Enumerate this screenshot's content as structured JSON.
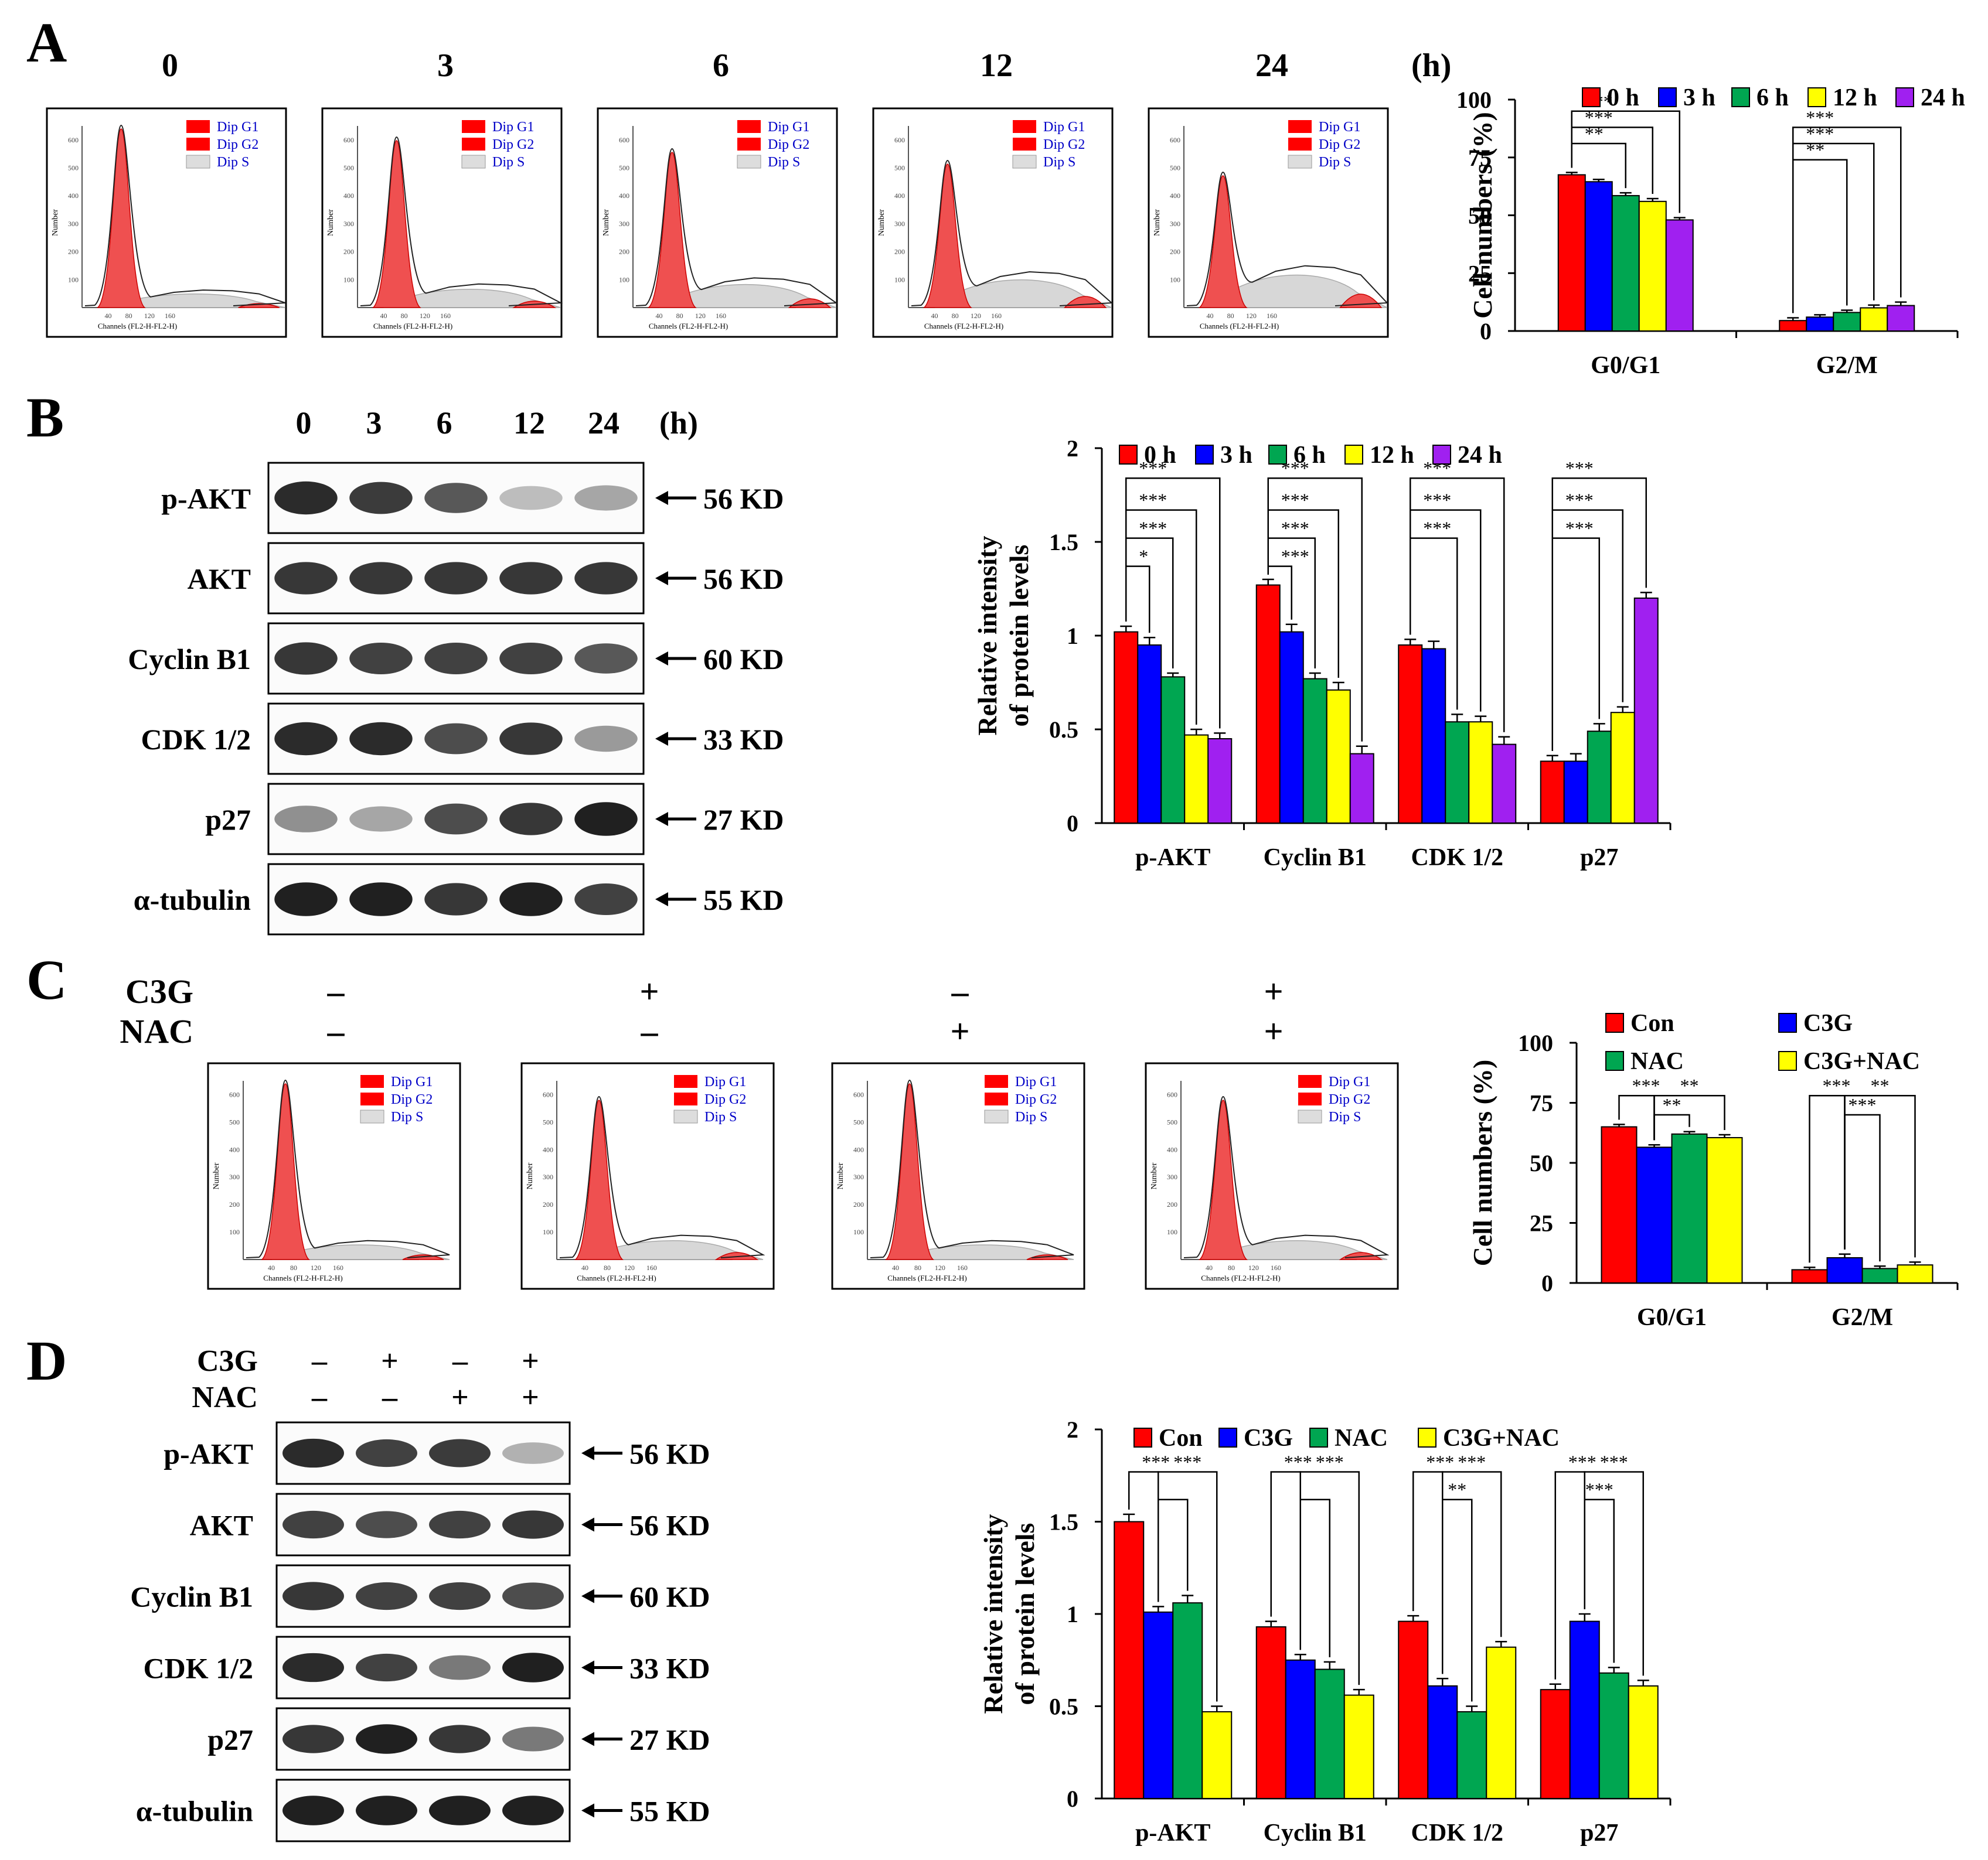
{
  "panels": {
    "A": {
      "label": "A",
      "time_labels": [
        "0",
        "3",
        "6",
        "12",
        "24"
      ],
      "time_unit": "(h)",
      "histogram": {
        "legend": [
          "Dip G1",
          "Dip G2",
          "Dip S"
        ],
        "y_axis": "Number",
        "x_axis": "Channels (FL2-H-FL2-H)",
        "ticks": [
          "40",
          "80",
          "120",
          "160"
        ],
        "y_ticks": [
          "100",
          "200",
          "300",
          "400",
          "500",
          "600"
        ]
      }
    },
    "B": {
      "label": "B",
      "lanes": [
        "0",
        "3",
        "6",
        "12",
        "24"
      ],
      "lane_unit": "(h)",
      "blots": [
        {
          "protein": "p-AKT",
          "size": "56 KD",
          "intensity": [
            0.95,
            0.88,
            0.75,
            0.3,
            0.4
          ]
        },
        {
          "protein": "AKT",
          "size": "56 KD",
          "intensity": [
            0.9,
            0.9,
            0.9,
            0.9,
            0.9
          ]
        },
        {
          "protein": "Cyclin B1",
          "size": "60 KD",
          "intensity": [
            0.9,
            0.85,
            0.85,
            0.85,
            0.75
          ]
        },
        {
          "protein": "CDK 1/2",
          "size": "33 KD",
          "intensity": [
            0.95,
            0.95,
            0.8,
            0.9,
            0.45
          ]
        },
        {
          "protein": "p27",
          "size": "27 KD",
          "intensity": [
            0.5,
            0.4,
            0.8,
            0.9,
            1.0
          ]
        },
        {
          "protein": "α-tubulin",
          "size": "55 KD",
          "intensity": [
            1.0,
            1.0,
            0.9,
            1.0,
            0.85
          ]
        }
      ]
    },
    "C": {
      "label": "C",
      "treatments": [
        {
          "name": "C3G",
          "signs": [
            "–",
            "+",
            "–",
            "+"
          ]
        },
        {
          "name": "NAC",
          "signs": [
            "–",
            "–",
            "+",
            "+"
          ]
        }
      ]
    },
    "D": {
      "label": "D",
      "treatments": [
        {
          "name": "C3G",
          "signs": [
            "–",
            "+",
            "–",
            "+"
          ]
        },
        {
          "name": "NAC",
          "signs": [
            "–",
            "–",
            "+",
            "+"
          ]
        }
      ],
      "blots": [
        {
          "protein": "p-AKT",
          "size": "56 KD",
          "intensity": [
            0.95,
            0.85,
            0.88,
            0.35
          ]
        },
        {
          "protein": "AKT",
          "size": "56 KD",
          "intensity": [
            0.85,
            0.8,
            0.85,
            0.9
          ]
        },
        {
          "protein": "Cyclin B1",
          "size": "60 KD",
          "intensity": [
            0.9,
            0.85,
            0.85,
            0.8
          ]
        },
        {
          "protein": "CDK 1/2",
          "size": "33 KD",
          "intensity": [
            0.95,
            0.85,
            0.6,
            1.0
          ]
        },
        {
          "protein": "p27",
          "size": "27 KD",
          "intensity": [
            0.9,
            1.0,
            0.9,
            0.6
          ]
        },
        {
          "protein": "α-tubulin",
          "size": "55 KD",
          "intensity": [
            1.0,
            1.0,
            1.0,
            1.0
          ]
        }
      ]
    }
  },
  "chart_data": [
    {
      "id": "A",
      "type": "bar",
      "ylabel": "Cell numbers (%)",
      "ylim": [
        0,
        100
      ],
      "yticks": [
        "0",
        "25",
        "50",
        "75",
        "100"
      ],
      "categories": [
        "G0/G1",
        "G2/M"
      ],
      "series": [
        {
          "name": "0 h",
          "color": "#ff0000",
          "values": [
            67.5,
            4.5
          ],
          "errors": [
            1.0,
            1.2
          ]
        },
        {
          "name": "3 h",
          "color": "#0000ff",
          "values": [
            64.5,
            6.0
          ],
          "errors": [
            1.0,
            1.0
          ]
        },
        {
          "name": "6 h",
          "color": "#00a651",
          "values": [
            58.5,
            8.0
          ],
          "errors": [
            1.2,
            1.0
          ]
        },
        {
          "name": "12 h",
          "color": "#ffff00",
          "values": [
            56.0,
            10.0
          ],
          "errors": [
            1.2,
            1.2
          ]
        },
        {
          "name": "24 h",
          "color": "#a020f0",
          "values": [
            48.0,
            11.0
          ],
          "errors": [
            1.0,
            1.5
          ]
        }
      ],
      "significance": [
        {
          "group": 0,
          "from": 0,
          "to": 4,
          "label": "***",
          "level": 95
        },
        {
          "group": 0,
          "from": 0,
          "to": 3,
          "label": "***",
          "level": 88
        },
        {
          "group": 0,
          "from": 0,
          "to": 2,
          "label": "**",
          "level": 81
        },
        {
          "group": 1,
          "from": 0,
          "to": 4,
          "label": "***",
          "level": 88
        },
        {
          "group": 1,
          "from": 0,
          "to": 3,
          "label": "***",
          "level": 81
        },
        {
          "group": 1,
          "from": 0,
          "to": 2,
          "label": "**",
          "level": 74
        }
      ]
    },
    {
      "id": "B",
      "type": "bar",
      "ylabel": [
        "Relative intensity",
        "of protein levels"
      ],
      "ylim": [
        0,
        2
      ],
      "yticks": [
        "0",
        "0.5",
        "1",
        "1.5",
        "2"
      ],
      "categories": [
        "p-AKT",
        "Cyclin B1",
        "CDK 1/2",
        "p27"
      ],
      "series": [
        {
          "name": "0 h",
          "color": "#ff0000",
          "values": [
            1.02,
            1.27,
            0.95,
            0.33
          ],
          "errors": [
            0.03,
            0.03,
            0.03,
            0.03
          ]
        },
        {
          "name": "3 h",
          "color": "#0000ff",
          "values": [
            0.95,
            1.02,
            0.93,
            0.33
          ],
          "errors": [
            0.04,
            0.04,
            0.04,
            0.04
          ]
        },
        {
          "name": "6 h",
          "color": "#00a651",
          "values": [
            0.78,
            0.77,
            0.54,
            0.49
          ],
          "errors": [
            0.02,
            0.03,
            0.04,
            0.04
          ]
        },
        {
          "name": "12 h",
          "color": "#ffff00",
          "values": [
            0.47,
            0.71,
            0.54,
            0.59
          ],
          "errors": [
            0.03,
            0.04,
            0.03,
            0.03
          ]
        },
        {
          "name": "24 h",
          "color": "#a020f0",
          "values": [
            0.45,
            0.37,
            0.42,
            1.2
          ],
          "errors": [
            0.03,
            0.04,
            0.04,
            0.03
          ]
        }
      ],
      "significance": [
        {
          "group": 0,
          "from": 0,
          "to": 4,
          "label": "***",
          "level": 1.84
        },
        {
          "group": 0,
          "from": 0,
          "to": 3,
          "label": "***",
          "level": 1.67
        },
        {
          "group": 0,
          "from": 0,
          "to": 2,
          "label": "***",
          "level": 1.52
        },
        {
          "group": 0,
          "from": 0,
          "to": 1,
          "label": "*",
          "level": 1.37
        },
        {
          "group": 1,
          "from": 0,
          "to": 4,
          "label": "***",
          "level": 1.84
        },
        {
          "group": 1,
          "from": 0,
          "to": 3,
          "label": "***",
          "level": 1.67
        },
        {
          "group": 1,
          "from": 0,
          "to": 2,
          "label": "***",
          "level": 1.52
        },
        {
          "group": 1,
          "from": 0,
          "to": 1,
          "label": "***",
          "level": 1.37
        },
        {
          "group": 2,
          "from": 0,
          "to": 4,
          "label": "***",
          "level": 1.84
        },
        {
          "group": 2,
          "from": 0,
          "to": 3,
          "label": "***",
          "level": 1.67
        },
        {
          "group": 2,
          "from": 0,
          "to": 2,
          "label": "***",
          "level": 1.52
        },
        {
          "group": 3,
          "from": 0,
          "to": 4,
          "label": "***",
          "level": 1.84
        },
        {
          "group": 3,
          "from": 0,
          "to": 3,
          "label": "***",
          "level": 1.67
        },
        {
          "group": 3,
          "from": 0,
          "to": 2,
          "label": "***",
          "level": 1.52
        }
      ]
    },
    {
      "id": "C",
      "type": "bar",
      "ylabel": "Cell numbers (%)",
      "ylim": [
        0,
        100
      ],
      "yticks": [
        "0",
        "25",
        "50",
        "75",
        "100"
      ],
      "categories": [
        "G0/G1",
        "G2/M"
      ],
      "series": [
        {
          "name": "Con",
          "color": "#ff0000",
          "values": [
            65.0,
            5.5
          ],
          "errors": [
            1.0,
            1.0
          ]
        },
        {
          "name": "C3G",
          "color": "#0000ff",
          "values": [
            56.5,
            10.5
          ],
          "errors": [
            1.0,
            1.5
          ]
        },
        {
          "name": "NAC",
          "color": "#00a651",
          "values": [
            62.0,
            6.0
          ],
          "errors": [
            1.0,
            1.0
          ]
        },
        {
          "name": "C3G+NAC",
          "color": "#ffff00",
          "values": [
            60.5,
            7.5
          ],
          "errors": [
            1.2,
            1.2
          ]
        }
      ],
      "significance": [
        {
          "group": 0,
          "from": 0,
          "to": 1,
          "label": "***",
          "level": 78
        },
        {
          "group": 0,
          "from": 1,
          "to": 3,
          "label": "**",
          "level": 78
        },
        {
          "group": 0,
          "from": 1,
          "to": 2,
          "label": "**",
          "level": 70
        },
        {
          "group": 1,
          "from": 0,
          "to": 1,
          "label": "***",
          "level": 78
        },
        {
          "group": 1,
          "from": 1,
          "to": 3,
          "label": "**",
          "level": 78
        },
        {
          "group": 1,
          "from": 1,
          "to": 2,
          "label": "***",
          "level": 70
        }
      ]
    },
    {
      "id": "D",
      "type": "bar",
      "ylabel": [
        "Relative intensity",
        "of protein levels"
      ],
      "ylim": [
        0,
        2
      ],
      "yticks": [
        "0",
        "0.5",
        "1",
        "1.5",
        "2"
      ],
      "categories": [
        "p-AKT",
        "Cyclin B1",
        "CDK 1/2",
        "p27"
      ],
      "series": [
        {
          "name": "Con",
          "color": "#ff0000",
          "values": [
            1.5,
            0.93,
            0.96,
            0.59
          ],
          "errors": [
            0.04,
            0.03,
            0.03,
            0.03
          ]
        },
        {
          "name": "C3G",
          "color": "#0000ff",
          "values": [
            1.01,
            0.75,
            0.61,
            0.96
          ],
          "errors": [
            0.03,
            0.03,
            0.04,
            0.04
          ]
        },
        {
          "name": "NAC",
          "color": "#00a651",
          "values": [
            1.06,
            0.7,
            0.47,
            0.68
          ],
          "errors": [
            0.04,
            0.04,
            0.03,
            0.03
          ]
        },
        {
          "name": "C3G+NAC",
          "color": "#ffff00",
          "values": [
            0.47,
            0.56,
            0.82,
            0.61
          ],
          "errors": [
            0.03,
            0.03,
            0.03,
            0.03
          ]
        }
      ],
      "significance": [
        {
          "group": 0,
          "from": 0,
          "to": 1,
          "label": "***",
          "level": 1.77
        },
        {
          "group": 0,
          "from": 1,
          "to": 3,
          "label": "***",
          "level": 1.77
        },
        {
          "group": 0,
          "from": 1,
          "to": 2,
          "label": "",
          "level": 1.62
        },
        {
          "group": 1,
          "from": 0,
          "to": 1,
          "label": "***",
          "level": 1.77
        },
        {
          "group": 1,
          "from": 1,
          "to": 3,
          "label": "***",
          "level": 1.77
        },
        {
          "group": 1,
          "from": 1,
          "to": 2,
          "label": "",
          "level": 1.62
        },
        {
          "group": 2,
          "from": 0,
          "to": 1,
          "label": "***",
          "level": 1.77
        },
        {
          "group": 2,
          "from": 1,
          "to": 3,
          "label": "***",
          "level": 1.77
        },
        {
          "group": 2,
          "from": 1,
          "to": 2,
          "label": "**",
          "level": 1.62
        },
        {
          "group": 3,
          "from": 0,
          "to": 1,
          "label": "***",
          "level": 1.77
        },
        {
          "group": 3,
          "from": 1,
          "to": 3,
          "label": "***",
          "level": 1.77
        },
        {
          "group": 3,
          "from": 1,
          "to": 2,
          "label": "***",
          "level": 1.62
        }
      ]
    }
  ]
}
